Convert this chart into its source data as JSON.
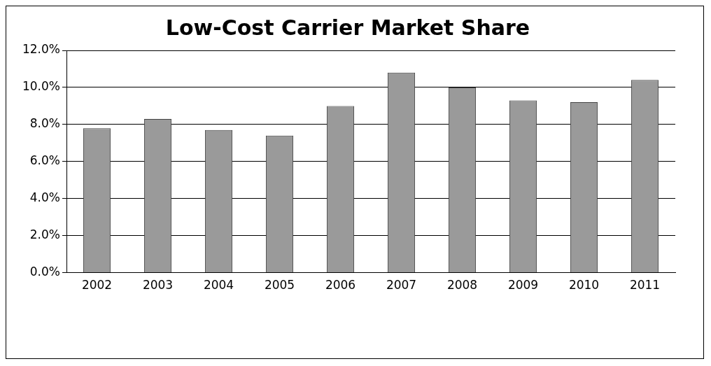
{
  "chart_data": {
    "type": "bar",
    "title": "Low-Cost Carrier Market Share",
    "categories": [
      "2002",
      "2003",
      "2004",
      "2005",
      "2006",
      "2007",
      "2008",
      "2009",
      "2010",
      "2011"
    ],
    "values": [
      7.8,
      8.3,
      7.7,
      7.4,
      9.0,
      10.8,
      10.0,
      9.3,
      9.2,
      10.4
    ],
    "color": "#9a9a9a",
    "ylim": [
      0,
      12
    ],
    "yticks": [
      {
        "value": 0,
        "label": "0.0%"
      },
      {
        "value": 2,
        "label": "2.0%"
      },
      {
        "value": 4,
        "label": "4.0%"
      },
      {
        "value": 6,
        "label": "6.0%"
      },
      {
        "value": 8,
        "label": "8.0%"
      },
      {
        "value": 10,
        "label": "10.0%"
      },
      {
        "value": 12,
        "label": "12.0%"
      }
    ],
    "grid": "y"
  }
}
